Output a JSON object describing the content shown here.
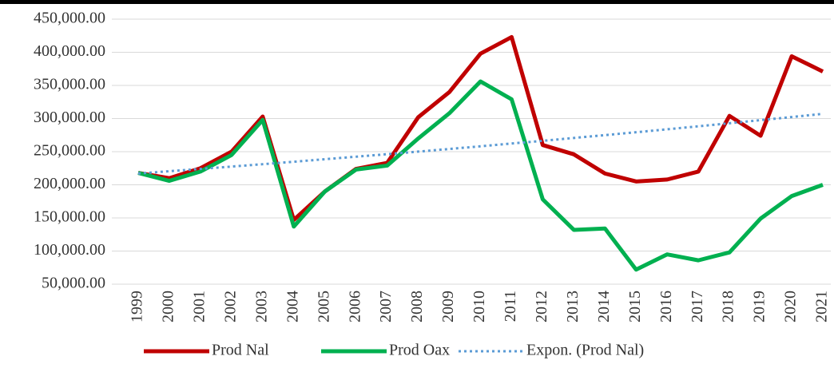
{
  "chart_data": {
    "type": "line",
    "categories": [
      "1999",
      "2000",
      "2001",
      "2002",
      "2003",
      "2004",
      "2005",
      "2006",
      "2007",
      "2008",
      "2009",
      "2010",
      "2011",
      "2012",
      "2013",
      "2014",
      "2015",
      "2016",
      "2017",
      "2018",
      "2019",
      "2020",
      "2021"
    ],
    "series": [
      {
        "name": "Prod Nal",
        "color": "#c00000",
        "values": [
          218000,
          210000,
          225000,
          250000,
          303000,
          147000,
          190000,
          224000,
          233000,
          302000,
          340000,
          398000,
          423000,
          260000,
          246000,
          217000,
          205000,
          208000,
          220000,
          304000,
          274000,
          394000,
          371000
        ]
      },
      {
        "name": "Prod Oax",
        "color": "#00b050",
        "values": [
          218000,
          206000,
          220000,
          245000,
          298000,
          137000,
          190000,
          223000,
          229000,
          270000,
          308000,
          356000,
          329000,
          178000,
          132000,
          134000,
          72000,
          95000,
          86000,
          98000,
          149000,
          183000,
          200000
        ]
      },
      {
        "name": "Expon. (Prod Nal)",
        "color": "#5b9bd5",
        "style": "dotted",
        "values": [
          217000,
          220500,
          224000,
          227500,
          231100,
          234800,
          238600,
          242400,
          246200,
          250100,
          254100,
          258100,
          262300,
          266400,
          270700,
          275000,
          279300,
          283800,
          288300,
          292900,
          297600,
          302300,
          307100
        ]
      }
    ],
    "ylim": [
      50000,
      450000
    ],
    "yticks": [
      {
        "value": 50000,
        "label": "50,000.00"
      },
      {
        "value": 100000,
        "label": "100,000.00"
      },
      {
        "value": 150000,
        "label": "150,000.00"
      },
      {
        "value": 200000,
        "label": "200,000.00"
      },
      {
        "value": 250000,
        "label": "250,000.00"
      },
      {
        "value": 300000,
        "label": "300,000.00"
      },
      {
        "value": 350000,
        "label": "350,000.00"
      },
      {
        "value": 400000,
        "label": "400,000.00"
      },
      {
        "value": 450000,
        "label": "450,000.00"
      }
    ],
    "grid": true
  }
}
